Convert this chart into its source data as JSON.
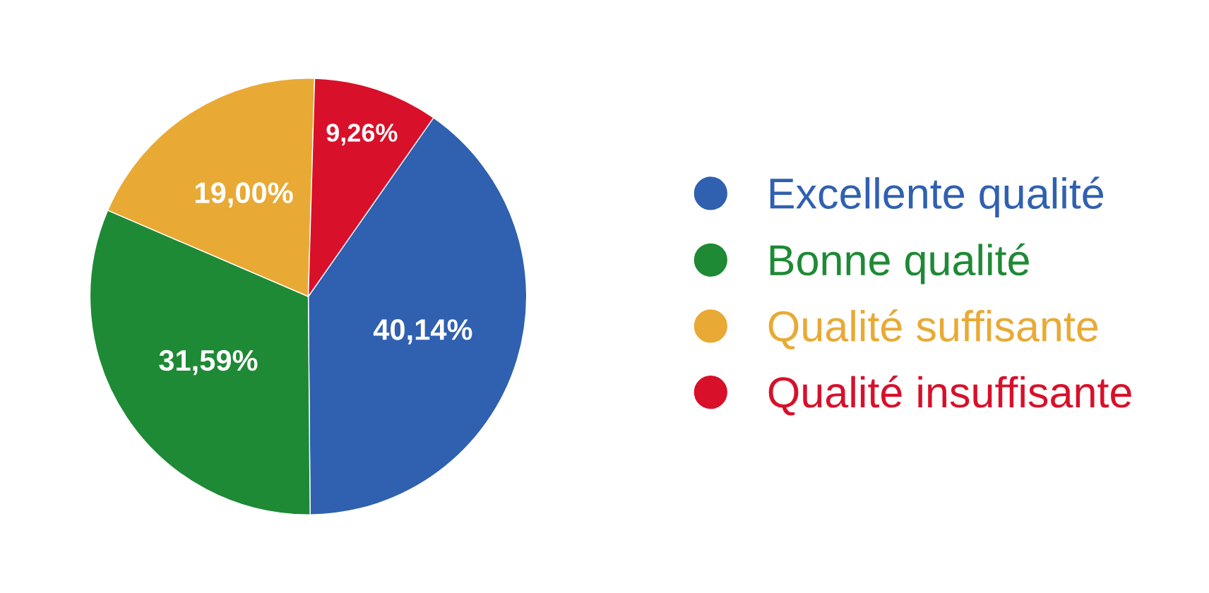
{
  "chart_data": {
    "type": "pie",
    "categories": [
      "Excellente qualité",
      "Bonne qualité",
      "Qualité suffisante",
      "Qualité insuffisante"
    ],
    "values": [
      40.14,
      31.59,
      19.0,
      9.26
    ],
    "value_labels": [
      "40,14%",
      "31,59%",
      "19,00%",
      "9,26%"
    ],
    "colors": [
      "#3060b0",
      "#1e8a35",
      "#e8aa35",
      "#d8102a"
    ],
    "legend": "right"
  }
}
